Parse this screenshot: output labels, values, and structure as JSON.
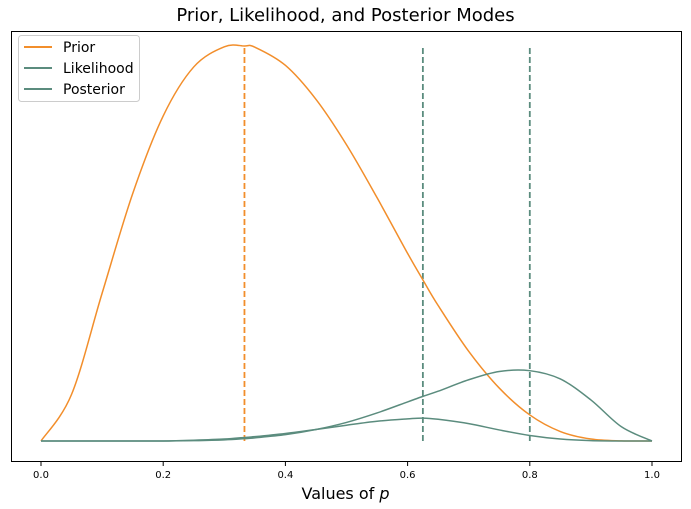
{
  "chart_data": {
    "type": "line",
    "title": "Prior, Likelihood, and Posterior Modes",
    "xlabel": "Values of p",
    "xlabel_prefix": "Values of ",
    "xlabel_var": "p",
    "ylabel": "",
    "xlim": [
      0.0,
      1.0
    ],
    "x_ticks": [
      "0.0",
      "0.2",
      "0.4",
      "0.6",
      "0.8",
      "1.0"
    ],
    "y_ticks_visible": false,
    "grid": false,
    "legend_position": "top-left",
    "legend": [
      "Prior",
      "Likelihood",
      "Posterior"
    ],
    "x": [
      0.0,
      0.05,
      0.1,
      0.15,
      0.2,
      0.25,
      0.3,
      0.333,
      0.35,
      0.4,
      0.45,
      0.5,
      0.55,
      0.6,
      0.625,
      0.65,
      0.7,
      0.75,
      0.8,
      0.85,
      0.9,
      0.95,
      1.0
    ],
    "series": [
      {
        "name": "Prior",
        "color": "#f28e2b",
        "values": [
          0.0,
          0.118,
          0.374,
          0.626,
          0.823,
          0.947,
          0.998,
          1.0,
          0.997,
          0.951,
          0.865,
          0.75,
          0.616,
          0.475,
          0.408,
          0.343,
          0.227,
          0.134,
          0.066,
          0.024,
          0.005,
          0.0003,
          0.0
        ]
      },
      {
        "name": "Likelihood",
        "color": "#5b8c7e",
        "values": [
          0.0,
          0.0,
          0.0,
          0.0,
          0.0,
          0.001,
          0.003,
          0.006,
          0.008,
          0.016,
          0.029,
          0.047,
          0.071,
          0.099,
          0.113,
          0.126,
          0.155,
          0.176,
          0.178,
          0.157,
          0.104,
          0.036,
          0.0
        ]
      },
      {
        "name": "Posterior",
        "color": "#5b8c7e",
        "values": [
          0.0,
          0.0,
          0.0,
          0.0,
          0.0,
          0.002,
          0.005,
          0.009,
          0.011,
          0.019,
          0.029,
          0.04,
          0.05,
          0.056,
          0.058,
          0.055,
          0.044,
          0.028,
          0.014,
          0.005,
          0.001,
          0.0,
          0.0
        ]
      }
    ],
    "mode_lines": [
      {
        "series": "Prior",
        "x": 0.333,
        "color": "#f28e2b"
      },
      {
        "series": "Posterior",
        "x": 0.625,
        "color": "#5b8c7e"
      },
      {
        "series": "Likelihood",
        "x": 0.8,
        "color": "#5b8c7e"
      }
    ],
    "mode_line_top": 1.0
  }
}
